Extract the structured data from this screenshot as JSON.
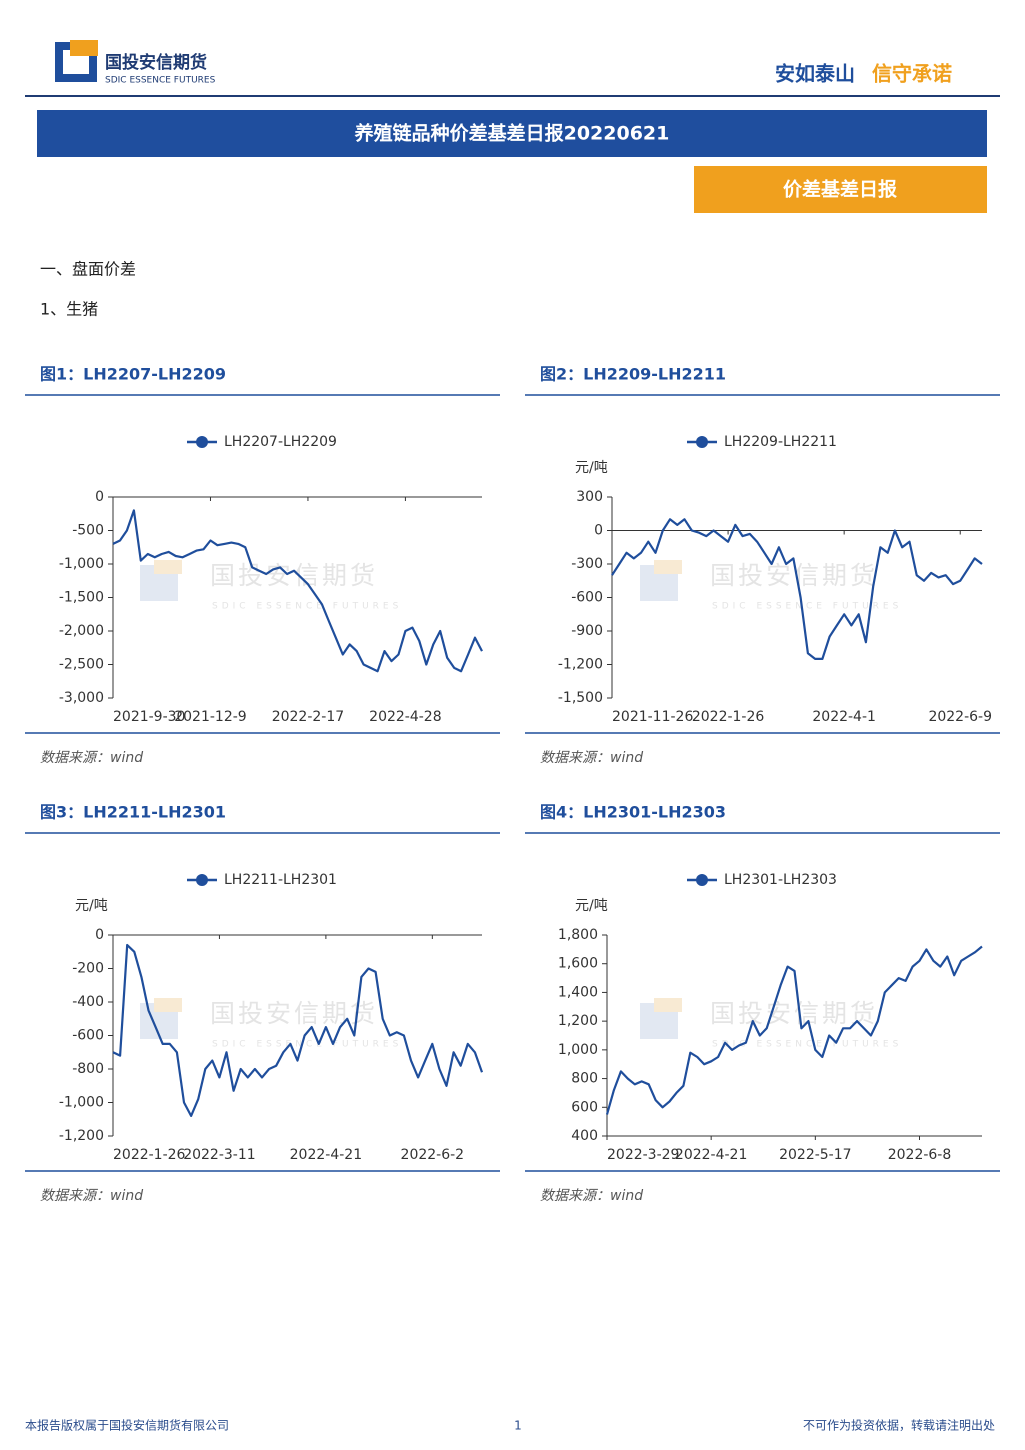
{
  "header": {
    "logo_cn": "国投安信期货",
    "logo_en": "SDIC ESSENCE FUTURES",
    "slogan_1": "安如泰山",
    "slogan_2": "信守承诺"
  },
  "title": "养殖链品种价差基差日报20220621",
  "tag": "价差基差日报",
  "section": "一、盘面价差",
  "subsection": "1、生猪",
  "watermark": {
    "cn": "国投安信期货",
    "en": "SDIC ESSENCE FUTURES"
  },
  "chart_data": [
    {
      "type": "line",
      "caption": "图1：LH2207-LH2209",
      "source": "数据来源：wind",
      "categories": [
        "2021-9-30",
        null,
        null,
        null,
        null,
        null,
        null,
        null,
        null,
        null,
        null,
        null,
        null,
        null,
        "2021-12-9",
        null,
        null,
        null,
        null,
        null,
        null,
        null,
        null,
        null,
        null,
        null,
        null,
        null,
        "2022-2-17",
        null,
        null,
        null,
        null,
        null,
        null,
        null,
        null,
        null,
        null,
        null,
        null,
        null,
        "2022-4-28",
        null,
        null,
        null,
        null,
        null,
        null,
        null,
        null,
        null,
        null,
        null
      ],
      "series": [
        {
          "name": "LH2207-LH2209",
          "color": "#1f4e9c",
          "values": [
            -700,
            -650,
            -500,
            -200,
            -950,
            -850,
            -900,
            -850,
            -820,
            -880,
            -900,
            -850,
            -800,
            -780,
            -650,
            -720,
            -700,
            -680,
            -700,
            -750,
            -1050,
            -1100,
            -1150,
            -1080,
            -1050,
            -1150,
            -1100,
            -1200,
            -1300,
            -1450,
            -1600,
            -1850,
            -2100,
            -2350,
            -2200,
            -2300,
            -2500,
            -2550,
            -2600,
            -2300,
            -2450,
            -2350,
            -2000,
            -1950,
            -2150,
            -2500,
            -2200,
            -2000,
            -2400,
            -2550,
            -2600,
            -2350,
            -2100,
            -2300
          ]
        }
      ],
      "ylim": [
        -3000,
        0
      ],
      "yticks": [
        0,
        -500,
        {
          "value": -1000,
          "label": "-1,000"
        },
        {
          "value": -1500,
          "label": "-1,500"
        },
        {
          "value": -2000,
          "label": "-2,000"
        },
        {
          "value": -2500,
          "label": "-2,500"
        },
        {
          "value": -3000,
          "label": "-3,000"
        }
      ]
    },
    {
      "type": "line",
      "caption": "图2：LH2209-LH2211",
      "source": "数据来源：wind",
      "y_unit": "元/吨",
      "categories": [
        "2021-11-26",
        null,
        null,
        null,
        null,
        null,
        null,
        null,
        null,
        null,
        null,
        null,
        null,
        null,
        null,
        null,
        "2022-1-26",
        null,
        null,
        null,
        null,
        null,
        null,
        null,
        null,
        null,
        null,
        null,
        null,
        null,
        null,
        null,
        "2022-4-1",
        null,
        null,
        null,
        null,
        null,
        null,
        null,
        null,
        null,
        null,
        null,
        null,
        null,
        null,
        null,
        "2022-6-9",
        null,
        null,
        null
      ],
      "series": [
        {
          "name": "LH2209-LH2211",
          "color": "#1f4e9c",
          "values": [
            -400,
            -300,
            -200,
            -250,
            -200,
            -100,
            -200,
            0,
            100,
            50,
            100,
            0,
            -20,
            -50,
            0,
            -50,
            -100,
            50,
            -50,
            -30,
            -100,
            -200,
            -300,
            -150,
            -300,
            -250,
            -600,
            -1100,
            -1150,
            -1150,
            -950,
            -850,
            -750,
            -850,
            -750,
            -1000,
            -500,
            -150,
            -200,
            0,
            -150,
            -100,
            -400,
            -450,
            -380,
            -420,
            -400,
            -480,
            -450,
            -350,
            -250,
            -300
          ]
        }
      ],
      "ylim": [
        -1500,
        300
      ],
      "yticks": [
        300,
        0,
        -300,
        -600,
        -900,
        {
          "value": -1200,
          "label": "-1,200"
        },
        {
          "value": -1500,
          "label": "-1,500"
        }
      ]
    },
    {
      "type": "line",
      "caption": "图3：LH2211-LH2301",
      "source": "数据来源：wind",
      "y_unit": "元/吨",
      "categories": [
        "2022-1-26",
        null,
        null,
        null,
        null,
        null,
        null,
        null,
        null,
        null,
        null,
        null,
        null,
        null,
        null,
        "2022-3-11",
        null,
        null,
        null,
        null,
        null,
        null,
        null,
        null,
        null,
        null,
        null,
        null,
        null,
        null,
        "2022-4-21",
        null,
        null,
        null,
        null,
        null,
        null,
        null,
        null,
        null,
        null,
        null,
        null,
        null,
        null,
        "2022-6-2",
        null,
        null,
        null,
        null,
        null,
        null,
        null
      ],
      "series": [
        {
          "name": "LH2211-LH2301",
          "color": "#1f4e9c",
          "values": [
            -700,
            -720,
            -60,
            -100,
            -250,
            -450,
            -550,
            -650,
            -650,
            -700,
            -1000,
            -1080,
            -980,
            -800,
            -750,
            -850,
            -700,
            -930,
            -800,
            -850,
            -800,
            -850,
            -800,
            -780,
            -700,
            -650,
            -750,
            -600,
            -550,
            -650,
            -550,
            -650,
            -550,
            -500,
            -600,
            -250,
            -200,
            -220,
            -500,
            -600,
            -580,
            -600,
            -750,
            -850,
            -750,
            -650,
            -800,
            -900,
            -700,
            -780,
            -650,
            -700,
            -820
          ]
        }
      ],
      "ylim": [
        -1200,
        0
      ],
      "yticks": [
        0,
        -200,
        -400,
        -600,
        -800,
        {
          "value": -1000,
          "label": "-1,000"
        },
        {
          "value": -1200,
          "label": "-1,200"
        }
      ]
    },
    {
      "type": "line",
      "caption": "图4：LH2301-LH2303",
      "source": "数据来源：wind",
      "y_unit": "元/吨",
      "categories": [
        "2022-3-29",
        null,
        null,
        null,
        null,
        null,
        null,
        null,
        null,
        null,
        null,
        null,
        null,
        null,
        null,
        "2022-4-21",
        null,
        null,
        null,
        null,
        null,
        null,
        null,
        null,
        null,
        null,
        null,
        null,
        null,
        null,
        "2022-5-17",
        null,
        null,
        null,
        null,
        null,
        null,
        null,
        null,
        null,
        null,
        null,
        null,
        null,
        null,
        "2022-6-8",
        null,
        null,
        null,
        null,
        null,
        null,
        null,
        null,
        null
      ],
      "series": [
        {
          "name": "LH2301-LH2303",
          "color": "#1f4e9c",
          "values": [
            550,
            720,
            850,
            800,
            760,
            780,
            760,
            650,
            600,
            640,
            700,
            750,
            980,
            950,
            900,
            920,
            950,
            1050,
            1000,
            1030,
            1050,
            1200,
            1100,
            1150,
            1300,
            1450,
            1580,
            1550,
            1150,
            1200,
            1000,
            950,
            1100,
            1050,
            1150,
            1150,
            1200,
            1150,
            1100,
            1200,
            1400,
            1450,
            1500,
            1480,
            1580,
            1620,
            1700,
            1620,
            1580,
            1650,
            1520,
            1620,
            1650,
            1680,
            1720
          ]
        }
      ],
      "ylim": [
        400,
        1800
      ],
      "yticks": [
        400,
        600,
        800,
        {
          "value": 1000,
          "label": "1,000"
        },
        {
          "value": 1200,
          "label": "1,200"
        },
        {
          "value": 1400,
          "label": "1,400"
        },
        {
          "value": 1600,
          "label": "1,600"
        },
        {
          "value": 1800,
          "label": "1,800"
        }
      ]
    }
  ],
  "footer": {
    "left": "本报告版权属于国投安信期货有限公司",
    "page": "1",
    "right": "不可作为投资依据，转载请注明出处"
  }
}
